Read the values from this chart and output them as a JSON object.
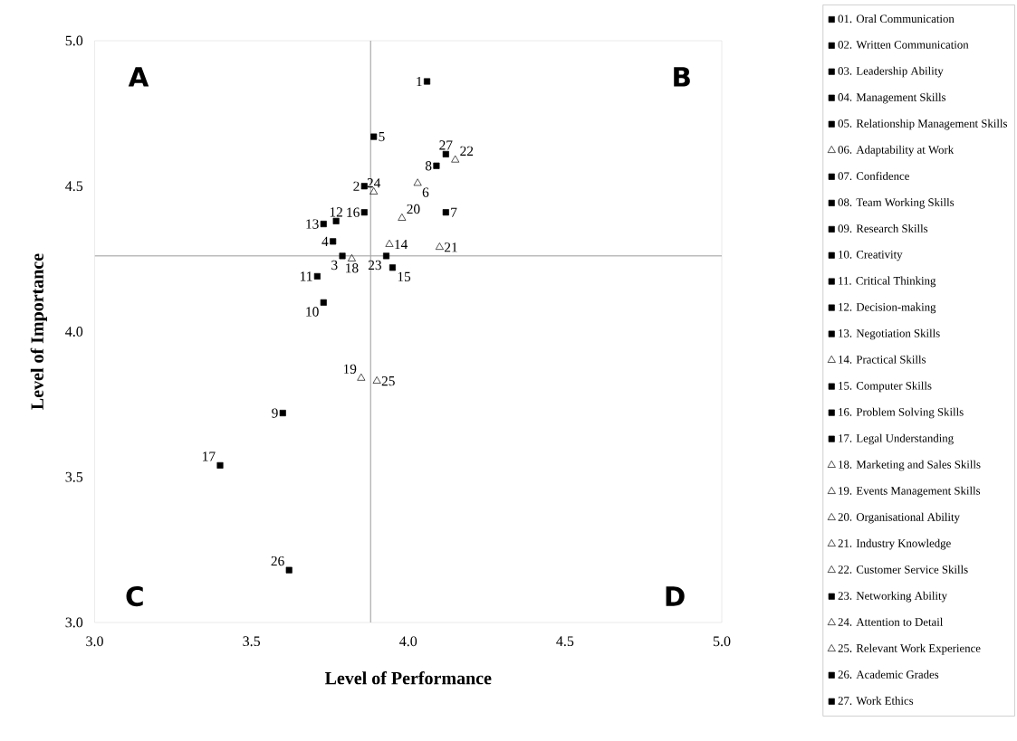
{
  "chart_data": {
    "type": "scatter",
    "xlabel": "Level of Performance",
    "ylabel": "Level of Importance",
    "xlim": [
      3.0,
      5.0
    ],
    "ylim": [
      3.0,
      5.0
    ],
    "xticks": [
      {
        "value": 3.0,
        "label": "3.0"
      },
      {
        "value": 3.5,
        "label": "3.5"
      },
      {
        "value": 4.0,
        "label": "4.0"
      },
      {
        "value": 4.5,
        "label": "4.5"
      },
      {
        "value": 5.0,
        "label": "5.0"
      }
    ],
    "yticks": [
      {
        "value": 3.0,
        "label": "3.0"
      },
      {
        "value": 3.5,
        "label": "3.5"
      },
      {
        "value": 4.0,
        "label": "4.0"
      },
      {
        "value": 4.5,
        "label": "4.5"
      },
      {
        "value": 5.0,
        "label": "5.0"
      }
    ],
    "grid": false,
    "legend": "right",
    "ref_lines": [
      {
        "axis": "x",
        "value": 3.88,
        "color": "#a6a6a6"
      },
      {
        "axis": "y",
        "value": 4.26,
        "color": "#a6a6a6"
      }
    ],
    "series": [
      {
        "name": "01. Oral Communication",
        "marker": "square",
        "color": "#000000",
        "x": [
          4.06
        ],
        "values": [
          4.86
        ]
      },
      {
        "name": "02. Written Communication",
        "marker": "square",
        "color": "#000000",
        "x": [
          3.86
        ],
        "values": [
          4.5
        ]
      },
      {
        "name": "03. Leadership Ability",
        "marker": "square",
        "color": "#000000",
        "x": [
          3.79
        ],
        "values": [
          4.26
        ]
      },
      {
        "name": "04. Management Skills",
        "marker": "square",
        "color": "#000000",
        "x": [
          3.76
        ],
        "values": [
          4.31
        ]
      },
      {
        "name": "05. Relationship Management Skills",
        "marker": "square",
        "color": "#000000",
        "x": [
          3.89
        ],
        "values": [
          4.67
        ]
      },
      {
        "name": "06. Adaptability at Work",
        "marker": "triangle",
        "color": "#000000",
        "x": [
          4.03
        ],
        "values": [
          4.51
        ]
      },
      {
        "name": "07. Confidence",
        "marker": "square",
        "color": "#000000",
        "x": [
          4.12
        ],
        "values": [
          4.41
        ]
      },
      {
        "name": "08. Team Working Skills",
        "marker": "square",
        "color": "#000000",
        "x": [
          4.09
        ],
        "values": [
          4.57
        ]
      },
      {
        "name": "09. Research Skills",
        "marker": "square",
        "color": "#000000",
        "x": [
          3.6
        ],
        "values": [
          3.72
        ]
      },
      {
        "name": "10. Creativity",
        "marker": "square",
        "color": "#000000",
        "x": [
          3.73
        ],
        "values": [
          4.1
        ]
      },
      {
        "name": "11. Critical Thinking",
        "marker": "square",
        "color": "#000000",
        "x": [
          3.71
        ],
        "values": [
          4.19
        ]
      },
      {
        "name": "12. Decision-making",
        "marker": "square",
        "color": "#000000",
        "x": [
          3.77
        ],
        "values": [
          4.38
        ]
      },
      {
        "name": "13. Negotiation Skills",
        "marker": "square",
        "color": "#000000",
        "x": [
          3.73
        ],
        "values": [
          4.37
        ]
      },
      {
        "name": "14. Practical Skills",
        "marker": "triangle",
        "color": "#000000",
        "x": [
          3.94
        ],
        "values": [
          4.3
        ]
      },
      {
        "name": "15. Computer Skills",
        "marker": "square",
        "color": "#000000",
        "x": [
          3.95
        ],
        "values": [
          4.22
        ]
      },
      {
        "name": "16. Problem Solving Skills",
        "marker": "square",
        "color": "#000000",
        "x": [
          3.86
        ],
        "values": [
          4.41
        ]
      },
      {
        "name": "17. Legal Understanding",
        "marker": "square",
        "color": "#000000",
        "x": [
          3.4
        ],
        "values": [
          3.54
        ]
      },
      {
        "name": "18. Marketing and Sales Skills",
        "marker": "triangle",
        "color": "#000000",
        "x": [
          3.82
        ],
        "values": [
          4.25
        ]
      },
      {
        "name": "19. Events Management Skills",
        "marker": "triangle",
        "color": "#000000",
        "x": [
          3.85
        ],
        "values": [
          3.84
        ]
      },
      {
        "name": "20. Organisational Ability",
        "marker": "triangle",
        "color": "#000000",
        "x": [
          3.98
        ],
        "values": [
          4.39
        ]
      },
      {
        "name": "21. Industry Knowledge",
        "marker": "triangle",
        "color": "#000000",
        "x": [
          4.1
        ],
        "values": [
          4.29
        ]
      },
      {
        "name": "22. Customer Service Skills",
        "marker": "triangle",
        "color": "#000000",
        "x": [
          4.15
        ],
        "values": [
          4.59
        ]
      },
      {
        "name": "23. Networking Ability",
        "marker": "square",
        "color": "#000000",
        "x": [
          3.93
        ],
        "values": [
          4.26
        ]
      },
      {
        "name": "24. Attention to Detail",
        "marker": "triangle",
        "color": "#000000",
        "x": [
          3.89
        ],
        "values": [
          4.48
        ]
      },
      {
        "name": "25. Relevant Work Experience",
        "marker": "triangle",
        "color": "#000000",
        "x": [
          3.9
        ],
        "values": [
          3.83
        ]
      },
      {
        "name": "26. Academic Grades",
        "marker": "square",
        "color": "#000000",
        "x": [
          3.62
        ],
        "values": [
          3.18
        ]
      },
      {
        "name": "27. Work Ethics",
        "marker": "square",
        "color": "#000000",
        "x": [
          4.12
        ],
        "values": [
          4.61
        ]
      }
    ],
    "annotations": [
      "A",
      "B",
      "C",
      "D",
      {
        "text": "1",
        "x": 4.06,
        "y": 4.86
      },
      {
        "text": "2",
        "x": 3.86,
        "y": 4.5
      },
      {
        "text": "3",
        "x": 3.79,
        "y": 4.26
      },
      {
        "text": "4",
        "x": 3.76,
        "y": 4.31
      },
      {
        "text": "5",
        "x": 3.89,
        "y": 4.67
      },
      {
        "text": "6",
        "x": 4.03,
        "y": 4.51
      },
      {
        "text": "7",
        "x": 4.12,
        "y": 4.41
      },
      {
        "text": "8",
        "x": 4.09,
        "y": 4.57
      },
      {
        "text": "9",
        "x": 3.6,
        "y": 3.72
      },
      {
        "text": "10",
        "x": 3.73,
        "y": 4.1
      },
      {
        "text": "11",
        "x": 3.71,
        "y": 4.19
      },
      {
        "text": "12",
        "x": 3.77,
        "y": 4.38
      },
      {
        "text": "13",
        "x": 3.73,
        "y": 4.37
      },
      {
        "text": "14",
        "x": 3.94,
        "y": 4.3
      },
      {
        "text": "15",
        "x": 3.95,
        "y": 4.22
      },
      {
        "text": "16",
        "x": 3.86,
        "y": 4.41
      },
      {
        "text": "17",
        "x": 3.4,
        "y": 3.54
      },
      {
        "text": "18",
        "x": 3.82,
        "y": 4.25
      },
      {
        "text": "19",
        "x": 3.85,
        "y": 3.84
      },
      {
        "text": "20",
        "x": 3.98,
        "y": 4.39
      },
      {
        "text": "21",
        "x": 4.1,
        "y": 4.29
      },
      {
        "text": "22",
        "x": 4.15,
        "y": 4.59
      },
      {
        "text": "23",
        "x": 3.93,
        "y": 4.26
      },
      {
        "text": "24",
        "x": 3.89,
        "y": 4.48
      },
      {
        "text": "25",
        "x": 3.9,
        "y": 3.83
      },
      {
        "text": "26",
        "x": 3.62,
        "y": 3.18
      },
      {
        "text": "27",
        "x": 4.12,
        "y": 4.61
      }
    ]
  }
}
